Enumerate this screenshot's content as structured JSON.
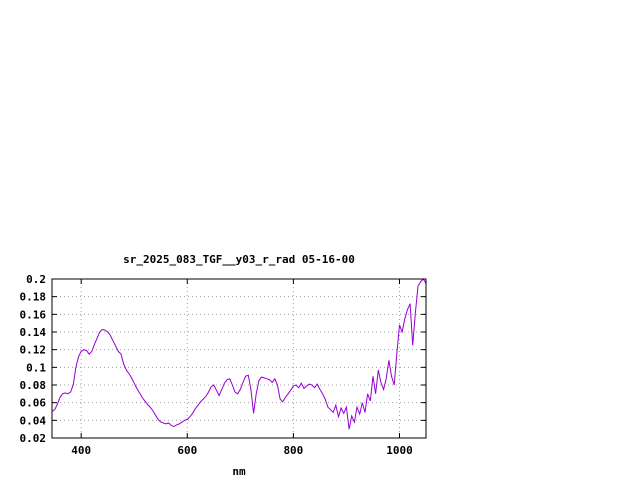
{
  "chart_data": {
    "type": "line",
    "title": "sr_2025_083_TGF__y03_r_rad 05-16-00",
    "xlabel": "nm",
    "ylabel": "",
    "xlim": [
      345,
      1050
    ],
    "ylim": [
      0.02,
      0.2
    ],
    "grid": true,
    "x_ticks": [
      400,
      600,
      800,
      1000
    ],
    "x_tick_labels": [
      "400",
      "600",
      "800",
      "1000"
    ],
    "y_ticks": [
      0.02,
      0.04,
      0.06,
      0.08,
      0.1,
      0.12,
      0.14,
      0.16,
      0.18,
      0.2
    ],
    "y_tick_labels": [
      "0.02",
      "0.04",
      "0.06",
      "0.08",
      "0.1",
      "0.12",
      "0.14",
      "0.16",
      "0.18",
      "0.2"
    ],
    "line_color": "#9400d3",
    "series": [
      {
        "x": [
          345,
          350,
          355,
          360,
          365,
          370,
          375,
          380,
          385,
          390,
          395,
          400,
          405,
          410,
          415,
          420,
          425,
          430,
          435,
          440,
          445,
          450,
          455,
          460,
          465,
          470,
          475,
          480,
          485,
          490,
          495,
          500,
          505,
          510,
          515,
          520,
          525,
          530,
          535,
          540,
          545,
          550,
          555,
          560,
          565,
          570,
          575,
          580,
          585,
          590,
          595,
          600,
          605,
          610,
          615,
          620,
          625,
          630,
          635,
          640,
          645,
          650,
          655,
          660,
          665,
          670,
          675,
          680,
          685,
          690,
          695,
          700,
          705,
          710,
          715,
          720,
          725,
          730,
          735,
          740,
          745,
          750,
          755,
          760,
          765,
          770,
          775,
          780,
          785,
          790,
          795,
          800,
          805,
          810,
          815,
          820,
          825,
          830,
          835,
          840,
          845,
          850,
          855,
          860,
          865,
          870,
          875,
          880,
          885,
          890,
          895,
          900,
          905,
          910,
          915,
          920,
          925,
          930,
          935,
          940,
          945,
          950,
          955,
          960,
          965,
          970,
          975,
          980,
          985,
          990,
          995,
          1000,
          1005,
          1010,
          1015,
          1020,
          1025,
          1030,
          1035,
          1040,
          1045,
          1050
        ],
        "values": [
          0.05,
          0.052,
          0.058,
          0.066,
          0.07,
          0.071,
          0.07,
          0.072,
          0.08,
          0.1,
          0.112,
          0.118,
          0.12,
          0.119,
          0.115,
          0.118,
          0.126,
          0.133,
          0.14,
          0.143,
          0.142,
          0.14,
          0.136,
          0.13,
          0.124,
          0.118,
          0.115,
          0.104,
          0.097,
          0.093,
          0.088,
          0.082,
          0.076,
          0.071,
          0.066,
          0.062,
          0.058,
          0.055,
          0.051,
          0.046,
          0.041,
          0.038,
          0.037,
          0.036,
          0.037,
          0.034,
          0.033,
          0.035,
          0.036,
          0.038,
          0.04,
          0.041,
          0.044,
          0.048,
          0.053,
          0.057,
          0.061,
          0.064,
          0.067,
          0.072,
          0.078,
          0.08,
          0.074,
          0.068,
          0.075,
          0.082,
          0.086,
          0.087,
          0.08,
          0.072,
          0.07,
          0.075,
          0.083,
          0.09,
          0.091,
          0.075,
          0.048,
          0.07,
          0.085,
          0.089,
          0.088,
          0.087,
          0.086,
          0.083,
          0.087,
          0.08,
          0.064,
          0.061,
          0.066,
          0.07,
          0.074,
          0.079,
          0.08,
          0.077,
          0.082,
          0.076,
          0.079,
          0.081,
          0.08,
          0.077,
          0.081,
          0.075,
          0.07,
          0.064,
          0.055,
          0.052,
          0.049,
          0.057,
          0.044,
          0.054,
          0.048,
          0.055,
          0.03,
          0.045,
          0.038,
          0.055,
          0.047,
          0.06,
          0.049,
          0.07,
          0.062,
          0.09,
          0.07,
          0.097,
          0.083,
          0.075,
          0.087,
          0.108,
          0.09,
          0.08,
          0.115,
          0.148,
          0.14,
          0.155,
          0.165,
          0.172,
          0.125,
          0.162,
          0.192,
          0.197,
          0.2,
          0.195
        ]
      }
    ]
  }
}
